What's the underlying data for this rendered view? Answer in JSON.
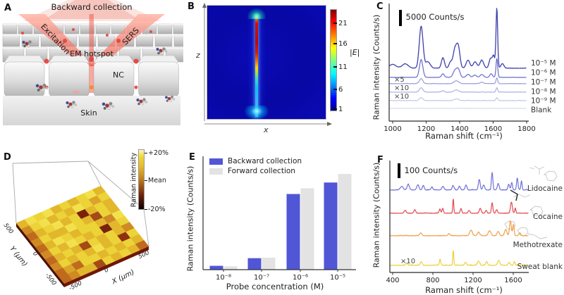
{
  "panelA": {
    "label": "A",
    "backward": "Backward collection",
    "excitation": "Excitation",
    "sers": "SERS",
    "em_hotspot": "EM hotspot",
    "nc": "NC",
    "skin": "Skin"
  },
  "panelB": {
    "label": "B"
  },
  "panelC": {
    "label": "C"
  },
  "panelD": {
    "label": "D"
  },
  "panelE": {
    "label": "E"
  },
  "panelF": {
    "label": "F"
  },
  "chart_data": [
    {
      "panel": "B",
      "type": "heatmap",
      "xlabel": "x",
      "ylabel": "z",
      "colorbar_label": "|E|",
      "colorbar_ticks": [
        "21",
        "16",
        "11",
        "6",
        "1"
      ],
      "range": [
        1,
        23
      ],
      "colormap": "jet",
      "description": "Simulated near-field map: narrow vertical nanogap hotspot slightly right of center; |E| ~21-23 (red) along upper half of gap, fading through yellow-green to cyan (~6-11) toward bottom; dark blue background |E| ~1 with small funnel-shaped field at gap top and flare at gap bottom."
    },
    {
      "panel": "C",
      "type": "line",
      "kind": "stacked-raman-spectra",
      "xlabel": "Raman shift (cm⁻¹)",
      "ylabel": "Raman intensity (Counts/s)",
      "x_range_cm": [
        1000,
        1800
      ],
      "xticks": [
        "1000",
        "1200",
        "1400",
        "1600",
        "1800"
      ],
      "scalebar_label": "5000 Counts/s",
      "scalebar_counts": 5000,
      "series": [
        {
          "name": "10⁻⁵ M",
          "multiplier": "",
          "color": "#4545ae",
          "noise": 150,
          "peaks": [
            [
              1000,
              1200,
              20
            ],
            [
              1075,
              1350,
              18
            ],
            [
              1170,
              13000,
              11
            ],
            [
              1210,
              2000,
              14
            ],
            [
              1300,
              3200,
              9
            ],
            [
              1345,
              1800,
              9
            ],
            [
              1372,
              5800,
              11
            ],
            [
              1392,
              6200,
              10
            ],
            [
              1450,
              2500,
              11
            ],
            [
              1492,
              2000,
              11
            ],
            [
              1532,
              2500,
              11
            ],
            [
              1585,
              3000,
              9
            ],
            [
              1603,
              3600,
              7
            ],
            [
              1622,
              18600,
              5
            ],
            [
              1655,
              1400,
              9
            ]
          ]
        },
        {
          "name": "10⁻⁶ M",
          "multiplier": "",
          "color": "#666cc9",
          "noise": 120,
          "peaks": [
            [
              1170,
              5500,
              10
            ],
            [
              1300,
              1100,
              8
            ],
            [
              1372,
              2100,
              11
            ],
            [
              1392,
              2400,
              10
            ],
            [
              1450,
              900,
              10
            ],
            [
              1490,
              700,
              10
            ],
            [
              1532,
              900,
              10
            ],
            [
              1588,
              1100,
              8
            ],
            [
              1622,
              5900,
              5
            ]
          ]
        },
        {
          "name": "10⁻⁷ M",
          "multiplier": "×5",
          "color": "#8f94d9",
          "noise": 170,
          "peaks": [
            [
              1170,
              1600,
              10
            ],
            [
              1380,
              900,
              14
            ],
            [
              1532,
              450,
              10
            ],
            [
              1622,
              1800,
              5
            ]
          ]
        },
        {
          "name": "10⁻⁸ M",
          "multiplier": "×10",
          "color": "#a5aae2",
          "noise": 160,
          "peaks": [
            [
              1170,
              1350,
              10
            ],
            [
              1300,
              450,
              8
            ],
            [
              1380,
              700,
              14
            ],
            [
              1622,
              1350,
              5
            ]
          ]
        },
        {
          "name": "10⁻⁹ M",
          "multiplier": "×10",
          "color": "#bcc0ea",
          "noise": 150,
          "peaks": [
            [
              1170,
              900,
              10
            ],
            [
              1380,
              450,
              14
            ],
            [
              1622,
              900,
              5
            ]
          ]
        },
        {
          "name": "Blank",
          "multiplier": "",
          "color": "#d3d5f2",
          "noise": 90,
          "peaks": []
        }
      ]
    },
    {
      "panel": "D",
      "type": "heatmap",
      "kind": "3d-surface-map",
      "xlabel": "X (μm)",
      "ylabel": "Y (μm)",
      "xticks": [
        "-500",
        "0",
        "500"
      ],
      "yticks": [
        "500",
        "0",
        "-500"
      ],
      "colorbar_label": "Raman intensity",
      "colorbar_ticks": [
        "+20%",
        "Mean",
        "-20%"
      ],
      "value_units": "percent deviation from mean Raman intensity",
      "grid_percent_deviation": [
        [
          5,
          12,
          8,
          14,
          6,
          10,
          4,
          9,
          12,
          7
        ],
        [
          -2,
          9,
          14,
          7,
          11,
          5,
          13,
          8,
          3,
          10
        ],
        [
          -6,
          6,
          10,
          13,
          5,
          9,
          -18,
          7,
          11,
          4
        ],
        [
          -4,
          11,
          7,
          4,
          12,
          8,
          5,
          -12,
          9,
          6
        ],
        [
          -7,
          5,
          13,
          9,
          6,
          11,
          8,
          4,
          -5,
          12
        ],
        [
          -3,
          8,
          4,
          12,
          9,
          5,
          10,
          -17,
          7,
          9
        ],
        [
          -8,
          4,
          10,
          6,
          -10,
          9,
          6,
          11,
          5,
          -4
        ],
        [
          -5,
          10,
          6,
          9,
          5,
          12,
          4,
          8,
          -14,
          8
        ],
        [
          -9,
          3,
          -9,
          11,
          8,
          4,
          9,
          6,
          10,
          5
        ],
        [
          -6,
          -4,
          7,
          5,
          -11,
          8,
          5,
          9,
          4,
          -8
        ]
      ]
    },
    {
      "panel": "E",
      "type": "bar",
      "xlabel": "Probe concentration (M)",
      "ylabel": "Raman intensity (Counts/s)",
      "categories": [
        "10⁻⁸",
        "10⁻⁷",
        "10⁻⁶",
        "10⁻⁵"
      ],
      "legend_position": "top-left",
      "value_units": "relative intensity (no numeric y ticks shown; normalized to tallest bar)",
      "series": [
        {
          "name": "Backward collection",
          "color": "#5156d6",
          "values": [
            0.04,
            0.12,
            0.79,
            0.91
          ]
        },
        {
          "name": "Forward collection",
          "color": "#e3e3e3",
          "values": [
            0.035,
            0.125,
            0.85,
            1.0
          ]
        }
      ]
    },
    {
      "panel": "F",
      "type": "line",
      "kind": "stacked-raman-spectra",
      "xlabel": "Raman shift (cm⁻¹)",
      "ylabel": "Raman intensity (Counts/s)",
      "x_range_cm": [
        400,
        1800
      ],
      "xticks": [
        "400",
        "800",
        "1200",
        "1600"
      ],
      "scalebar_label": "100 Counts/s",
      "scalebar_counts": 100,
      "series": [
        {
          "name": "Lidocaine",
          "multiplier": "",
          "color": "#6f72d8",
          "noise": 6,
          "peaks": [
            [
              490,
              24,
              14
            ],
            [
              555,
              38,
              11
            ],
            [
              650,
              33,
              11
            ],
            [
              705,
              29,
              9
            ],
            [
              790,
              19,
              9
            ],
            [
              900,
              24,
              11
            ],
            [
              1000,
              29,
              9
            ],
            [
              1065,
              24,
              9
            ],
            [
              1130,
              33,
              9
            ],
            [
              1262,
              71,
              9
            ],
            [
              1305,
              33,
              9
            ],
            [
              1390,
              119,
              7
            ],
            [
              1450,
              43,
              9
            ],
            [
              1555,
              38,
              8
            ],
            [
              1585,
              48,
              7
            ],
            [
              1640,
              81,
              7
            ],
            [
              1682,
              62,
              6
            ]
          ]
        },
        {
          "name": "Cocaine",
          "multiplier": "",
          "color": "#e04b50",
          "noise": 5,
          "peaks": [
            [
              525,
              19,
              9
            ],
            [
              620,
              24,
              9
            ],
            [
              870,
              29,
              7
            ],
            [
              898,
              33,
              7
            ],
            [
              1003,
              95,
              5
            ],
            [
              1080,
              33,
              7
            ],
            [
              1160,
              19,
              9
            ],
            [
              1272,
              33,
              9
            ],
            [
              1330,
              19,
              8
            ],
            [
              1390,
              71,
              7
            ],
            [
              1435,
              24,
              8
            ],
            [
              1582,
              76,
              9
            ],
            [
              1620,
              33,
              6
            ]
          ]
        },
        {
          "name": "Methotrexate",
          "multiplier": "",
          "color": "#f0a148",
          "noise": 5,
          "peaks": [
            [
              680,
              19,
              11
            ],
            [
              960,
              14,
              9
            ],
            [
              1180,
              38,
              13
            ],
            [
              1255,
              24,
              11
            ],
            [
              1365,
              33,
              13
            ],
            [
              1450,
              29,
              11
            ],
            [
              1525,
              43,
              11
            ],
            [
              1572,
              100,
              9
            ],
            [
              1602,
              76,
              7
            ],
            [
              1665,
              19,
              9
            ]
          ]
        },
        {
          "name": "Sweat blank",
          "multiplier": "×10",
          "color": "#eecf3a",
          "noise": 6,
          "peaks": [
            [
              540,
              14,
              9
            ],
            [
              685,
              24,
              9
            ],
            [
              872,
              38,
              7
            ],
            [
              1003,
              100,
              5
            ],
            [
              1125,
              19,
              9
            ],
            [
              1255,
              29,
              11
            ],
            [
              1335,
              24,
              9
            ],
            [
              1455,
              33,
              11
            ],
            [
              1560,
              19,
              9
            ],
            [
              1612,
              24,
              7
            ]
          ]
        }
      ]
    }
  ]
}
